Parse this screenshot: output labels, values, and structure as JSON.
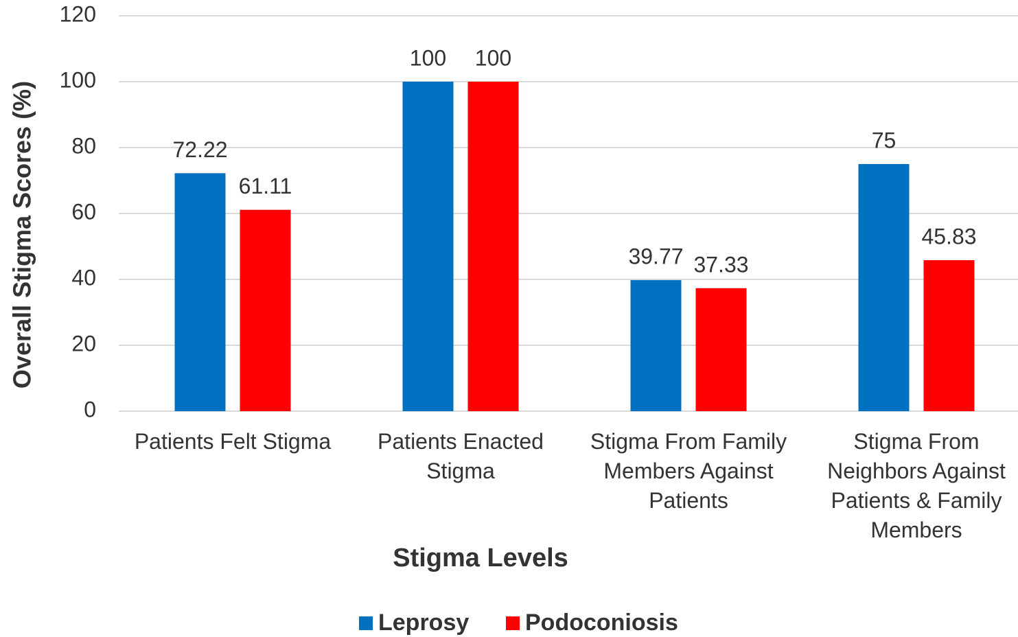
{
  "chart_data": {
    "type": "bar",
    "x_label": "Stigma Levels",
    "y_label": "Overall Stigma Scores (%)",
    "categories": [
      "Patients Felt Stigma",
      "Patients Enacted Stigma",
      "Stigma From Family Members Against Patients",
      "Stigma From Neighbors Against Patients & Family Members"
    ],
    "series": [
      {
        "name": "Leprosy",
        "color": "#0070c0",
        "values": [
          72.22,
          100,
          39.77,
          75
        ]
      },
      {
        "name": "Podoconiosis",
        "color": "#ff0000",
        "values": [
          61.11,
          100,
          37.33,
          45.83
        ]
      }
    ],
    "ylim": [
      0,
      120
    ],
    "yticks": [
      0,
      20,
      40,
      60,
      80,
      100,
      120
    ],
    "grid": true,
    "legend": "bottom"
  }
}
